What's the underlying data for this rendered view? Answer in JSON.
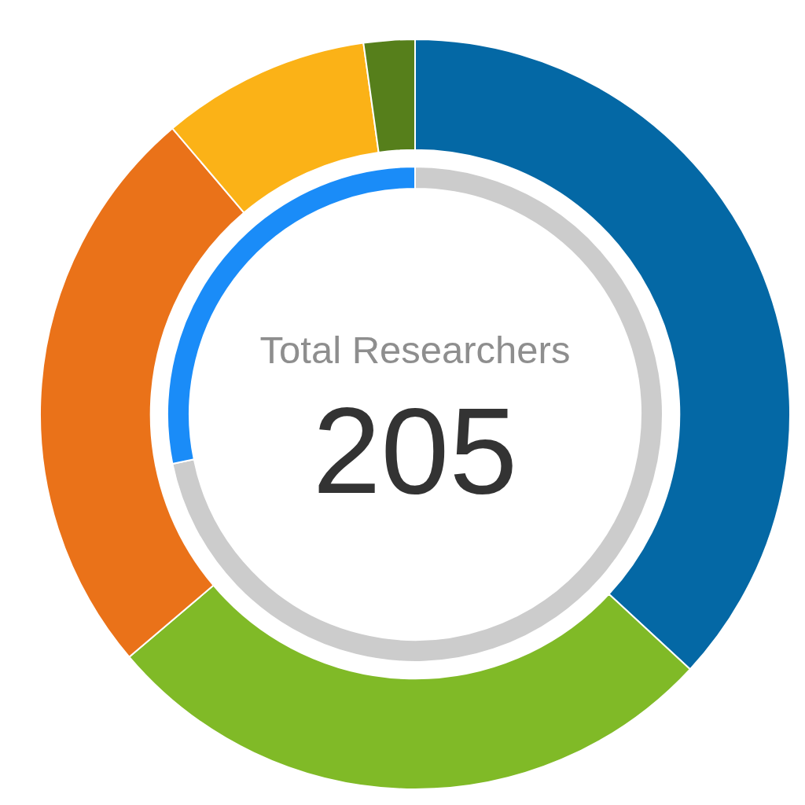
{
  "chart_data": [
    {
      "type": "donut",
      "categories": [
        null,
        null,
        null,
        null,
        null
      ],
      "values": [
        36.9,
        26.9,
        25.0,
        9.0,
        2.2
      ],
      "colors": [
        "#0468a5",
        "#80ba27",
        "#ea7219",
        "#fbb217",
        "#567f1b"
      ],
      "annotations": [
        "Total Researchers",
        "205"
      ]
    },
    {
      "type": "donut",
      "categories": [
        null,
        null
      ],
      "values": [
        71.8,
        28.2
      ],
      "colors": [
        "#cccccc",
        "#1a8cf8"
      ]
    }
  ]
}
